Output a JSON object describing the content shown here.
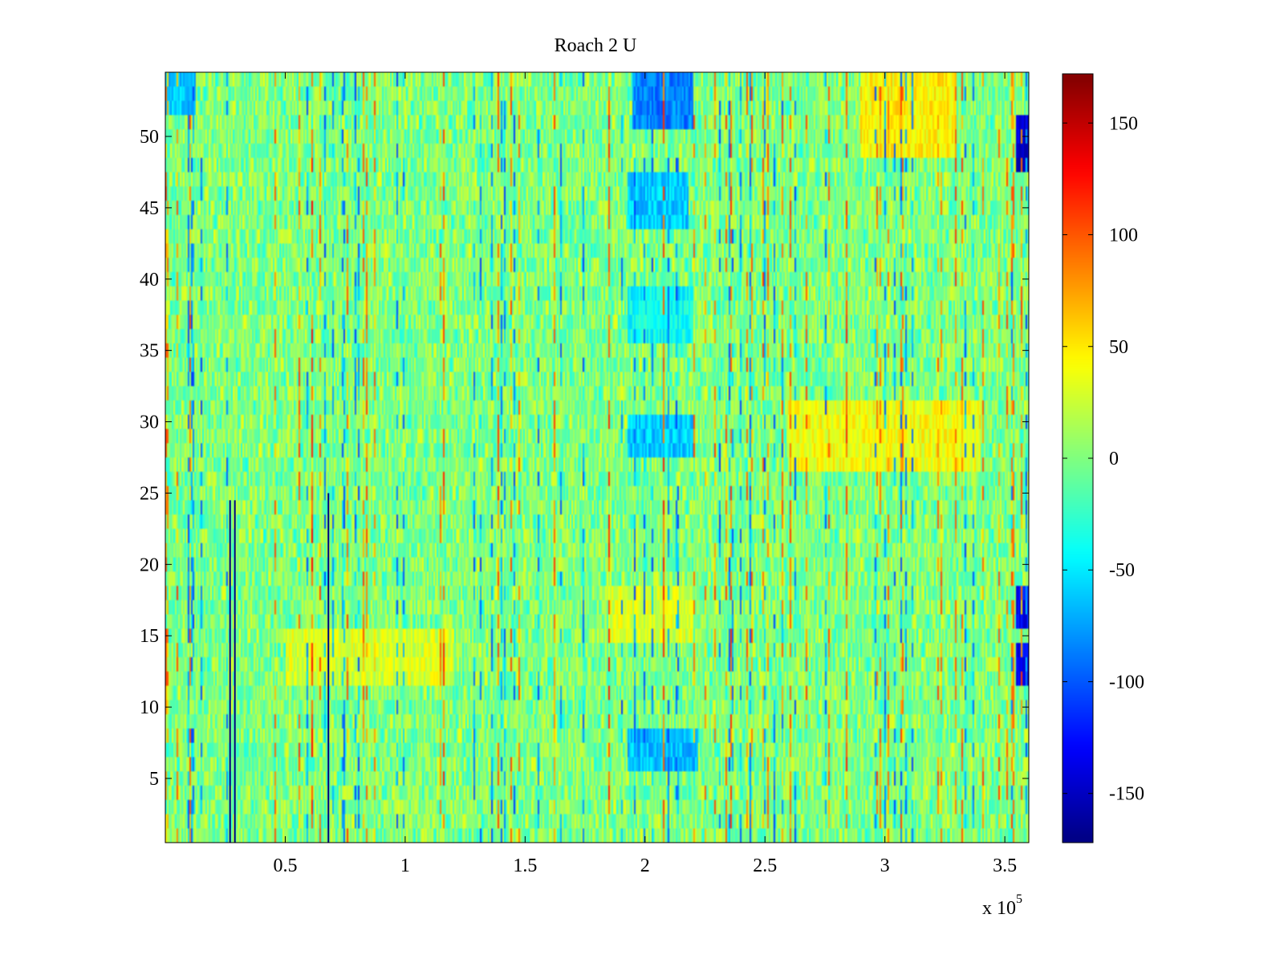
{
  "chart_data": {
    "type": "heatmap",
    "title": "Roach 2 U",
    "xlabel": "",
    "ylabel": "",
    "x_range": [
      0,
      360000
    ],
    "x_ticks": [
      50000,
      100000,
      150000,
      200000,
      250000,
      300000,
      350000
    ],
    "x_tick_labels": [
      "0.5",
      "1",
      "1.5",
      "2",
      "2.5",
      "3",
      "3.5"
    ],
    "x_exponent_label": "x 10",
    "x_exponent_power": "5",
    "y_range": [
      0.5,
      54.5
    ],
    "y_ticks": [
      5,
      10,
      15,
      20,
      25,
      30,
      35,
      40,
      45,
      50
    ],
    "y_tick_labels": [
      "5",
      "10",
      "15",
      "20",
      "25",
      "30",
      "35",
      "40",
      "45",
      "50"
    ],
    "rows": 54,
    "colormap": "jet",
    "clim": [
      -172,
      172
    ],
    "colorbar": {
      "ticks": [
        -150,
        -100,
        -50,
        0,
        50,
        100,
        150
      ],
      "tick_labels": [
        "-150",
        "-100",
        "-50",
        "0",
        "50",
        "100",
        "150"
      ]
    },
    "base_value": 0,
    "notable_regions": [
      {
        "x": [
          195000,
          220000
        ],
        "y": [
          51,
          54
        ],
        "value": -85
      },
      {
        "x": [
          193000,
          218000
        ],
        "y": [
          44,
          47
        ],
        "value": -60
      },
      {
        "x": [
          193000,
          220000
        ],
        "y": [
          28,
          30
        ],
        "value": -60
      },
      {
        "x": [
          193000,
          222000
        ],
        "y": [
          6,
          8
        ],
        "value": -65
      },
      {
        "x": [
          193000,
          220000
        ],
        "y": [
          36,
          39
        ],
        "value": -40
      },
      {
        "x": [
          0,
          12000
        ],
        "y": [
          52,
          54
        ],
        "value": -60
      },
      {
        "x": [
          355000,
          360000
        ],
        "y": [
          48,
          51
        ],
        "value": -140
      },
      {
        "x": [
          355000,
          360000
        ],
        "y": [
          16,
          18
        ],
        "value": -130
      },
      {
        "x": [
          355000,
          360000
        ],
        "y": [
          12,
          14
        ],
        "value": -130
      },
      {
        "x": [
          260000,
          340000
        ],
        "y": [
          27,
          31
        ],
        "value": 40
      },
      {
        "x": [
          290000,
          330000
        ],
        "y": [
          49,
          54
        ],
        "value": 45
      },
      {
        "x": [
          185000,
          220000
        ],
        "y": [
          15,
          18
        ],
        "value": 30
      },
      {
        "x": [
          50000,
          120000
        ],
        "y": [
          12,
          15
        ],
        "value": 30
      }
    ],
    "spikes": [
      {
        "x": 61000,
        "value": 130
      },
      {
        "x": 84000,
        "value": 110
      },
      {
        "x": 116000,
        "value": 120
      },
      {
        "x": 139000,
        "value": 115
      },
      {
        "x": 162000,
        "value": 110
      },
      {
        "x": 185000,
        "value": 125
      },
      {
        "x": 208000,
        "value": 120
      },
      {
        "x": 236000,
        "value": 115
      },
      {
        "x": 261000,
        "value": 110
      },
      {
        "x": 284000,
        "value": 120
      },
      {
        "x": 307000,
        "value": 115
      },
      {
        "x": 330000,
        "value": 110
      },
      {
        "x": 354000,
        "value": 105
      }
    ],
    "dark_lines": [
      {
        "x": 27000,
        "y": [
          0.5,
          24.5
        ],
        "value": -172
      },
      {
        "x": 29000,
        "y": [
          0.5,
          24.5
        ],
        "value": -172
      },
      {
        "x": 68000,
        "y": [
          0.5,
          25
        ],
        "value": -172
      }
    ]
  }
}
